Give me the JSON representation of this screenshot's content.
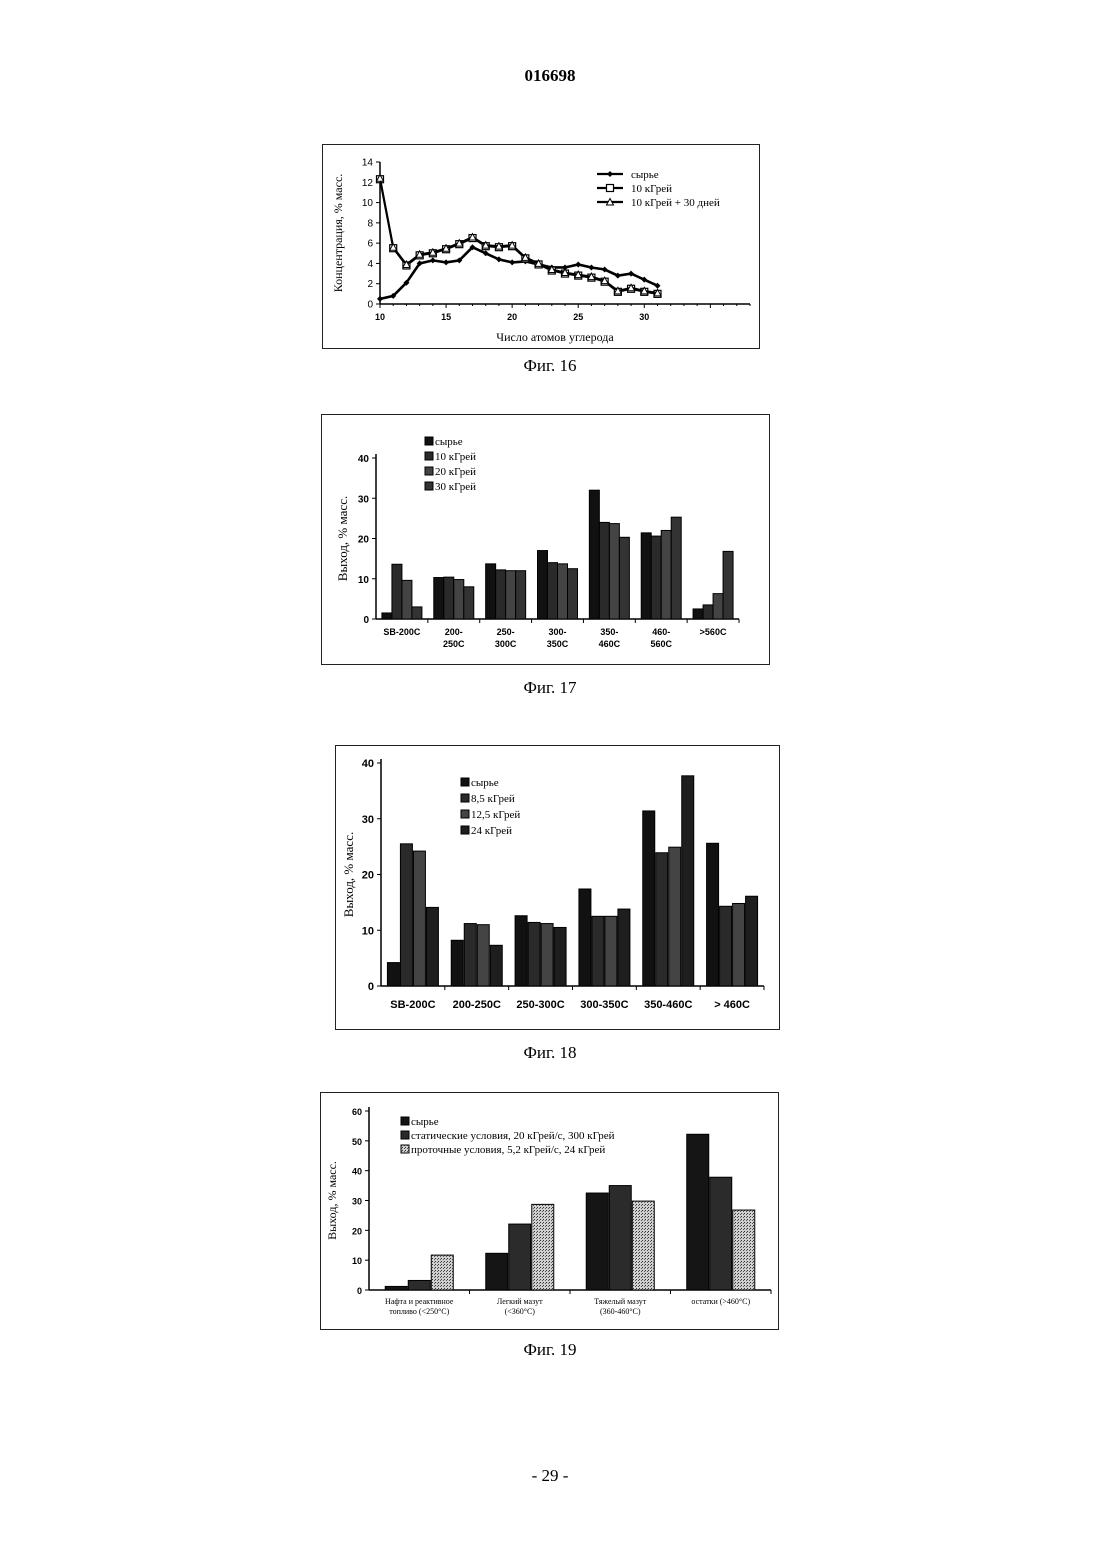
{
  "page": {
    "number": "016698",
    "footer": "- 29 -"
  },
  "figures": [
    {
      "caption": "Фиг. 16"
    },
    {
      "caption": "Фиг. 17"
    },
    {
      "caption": "Фиг. 18"
    },
    {
      "caption": "Фиг. 19"
    }
  ],
  "chart_data": [
    {
      "type": "line",
      "xlabel": "Число атомов углерода",
      "ylabel": "Концентрация, % масс.",
      "xlim": [
        10,
        38
      ],
      "ylim": [
        0,
        14
      ],
      "xticks": [
        10,
        15,
        20,
        25,
        30
      ],
      "yticks": [
        0,
        2,
        4,
        6,
        8,
        10,
        12,
        14
      ],
      "legend_position": "top-right",
      "series": [
        {
          "name": "сырье",
          "marker": "diamond",
          "x": [
            10,
            11,
            12,
            13,
            14,
            15,
            16,
            17,
            18,
            19,
            20,
            21,
            22,
            23,
            24,
            25,
            26,
            27,
            28,
            29,
            30,
            31
          ],
          "values": [
            0.5,
            0.8,
            2.1,
            4.0,
            4.3,
            4.1,
            4.3,
            5.6,
            5.0,
            4.4,
            4.1,
            4.2,
            3.9,
            3.6,
            3.6,
            3.9,
            3.6,
            3.4,
            2.8,
            3.0,
            2.4,
            1.8
          ]
        },
        {
          "name": "10 кГрей",
          "marker": "square",
          "x": [
            10,
            11,
            12,
            13,
            14,
            15,
            16,
            17,
            18,
            19,
            20,
            21,
            22,
            23,
            24,
            25,
            26,
            27,
            28,
            29,
            30,
            31
          ],
          "values": [
            12.3,
            5.5,
            3.8,
            4.8,
            5.0,
            5.4,
            5.9,
            6.5,
            5.7,
            5.6,
            5.7,
            4.5,
            3.9,
            3.3,
            3.0,
            2.8,
            2.6,
            2.2,
            1.2,
            1.5,
            1.2,
            1.0
          ]
        },
        {
          "name": "10 кГрей + 30 дней",
          "marker": "triangle",
          "x": [
            10,
            11,
            12,
            13,
            14,
            15,
            16,
            17,
            18,
            19,
            20,
            21,
            22,
            23,
            24,
            25,
            26,
            27,
            28,
            29,
            30,
            31
          ],
          "values": [
            12.4,
            5.6,
            3.9,
            4.9,
            5.1,
            5.5,
            6.0,
            6.6,
            5.8,
            5.7,
            5.8,
            4.6,
            4.0,
            3.4,
            3.1,
            2.9,
            2.7,
            2.3,
            1.3,
            1.6,
            1.3,
            1.1
          ]
        }
      ]
    },
    {
      "type": "bar",
      "ylabel": "Выход, % масс.",
      "ylim": [
        0,
        40
      ],
      "yticks": [
        0,
        10,
        20,
        30,
        40
      ],
      "legend_position": "top-left",
      "categories": [
        "SB-200C",
        "200-\n250C",
        "250-\n300C",
        "300-\n350C",
        "350-\n460C",
        "460-\n560C",
        ">560C"
      ],
      "series": [
        {
          "name": "сырье",
          "values": [
            1.5,
            10.3,
            13.7,
            17.0,
            32.0,
            21.4,
            2.5
          ]
        },
        {
          "name": "10 кГрей",
          "values": [
            13.6,
            10.4,
            12.2,
            14.0,
            24.0,
            20.6,
            3.5
          ]
        },
        {
          "name": "20 кГрей",
          "values": [
            9.6,
            9.8,
            12.0,
            13.7,
            23.7,
            22.0,
            6.3
          ]
        },
        {
          "name": "30 кГрей",
          "values": [
            3.0,
            8.0,
            12.0,
            12.5,
            20.3,
            25.3,
            16.8
          ]
        }
      ]
    },
    {
      "type": "bar",
      "ylabel": "Выход, % масс.",
      "ylim": [
        0,
        40
      ],
      "yticks": [
        0,
        10,
        20,
        30,
        40
      ],
      "legend_position": "top-center",
      "categories": [
        "SB-200C",
        "200-250C",
        "250-300C",
        "300-350C",
        "350-460C",
        "> 460C"
      ],
      "series": [
        {
          "name": "сырье",
          "values": [
            4.2,
            8.2,
            12.6,
            17.4,
            31.4,
            25.6
          ]
        },
        {
          "name": "8,5 кГрей",
          "values": [
            25.5,
            11.2,
            11.4,
            12.5,
            23.9,
            14.3
          ]
        },
        {
          "name": "12,5 кГрей",
          "values": [
            24.2,
            11.0,
            11.2,
            12.5,
            24.9,
            14.8
          ]
        },
        {
          "name": "24 кГрей",
          "values": [
            14.1,
            7.3,
            10.5,
            13.8,
            37.7,
            16.1
          ]
        }
      ]
    },
    {
      "type": "bar",
      "ylabel": "Выход, % масс.",
      "ylim": [
        0,
        60
      ],
      "yticks": [
        0,
        10,
        20,
        30,
        40,
        50,
        60
      ],
      "legend_position": "top-left",
      "categories": [
        "Нафта и реактивное\nтопливо (<250°C)",
        "Легкий мазут\n(<360°C)",
        "Тяжелый мазут\n(360-460°C)",
        "остатки (>460°C)"
      ],
      "series": [
        {
          "name": "сырье",
          "values": [
            1.2,
            12.3,
            32.5,
            52.2
          ]
        },
        {
          "name": "статические условия, 20 кГрей/с, 300 кГрей",
          "values": [
            3.2,
            22.1,
            35.0,
            37.8
          ]
        },
        {
          "name": "проточные условия, 5,2 кГрей/с, 24 кГрей",
          "values": [
            11.7,
            28.7,
            29.8,
            26.8
          ]
        }
      ]
    }
  ]
}
